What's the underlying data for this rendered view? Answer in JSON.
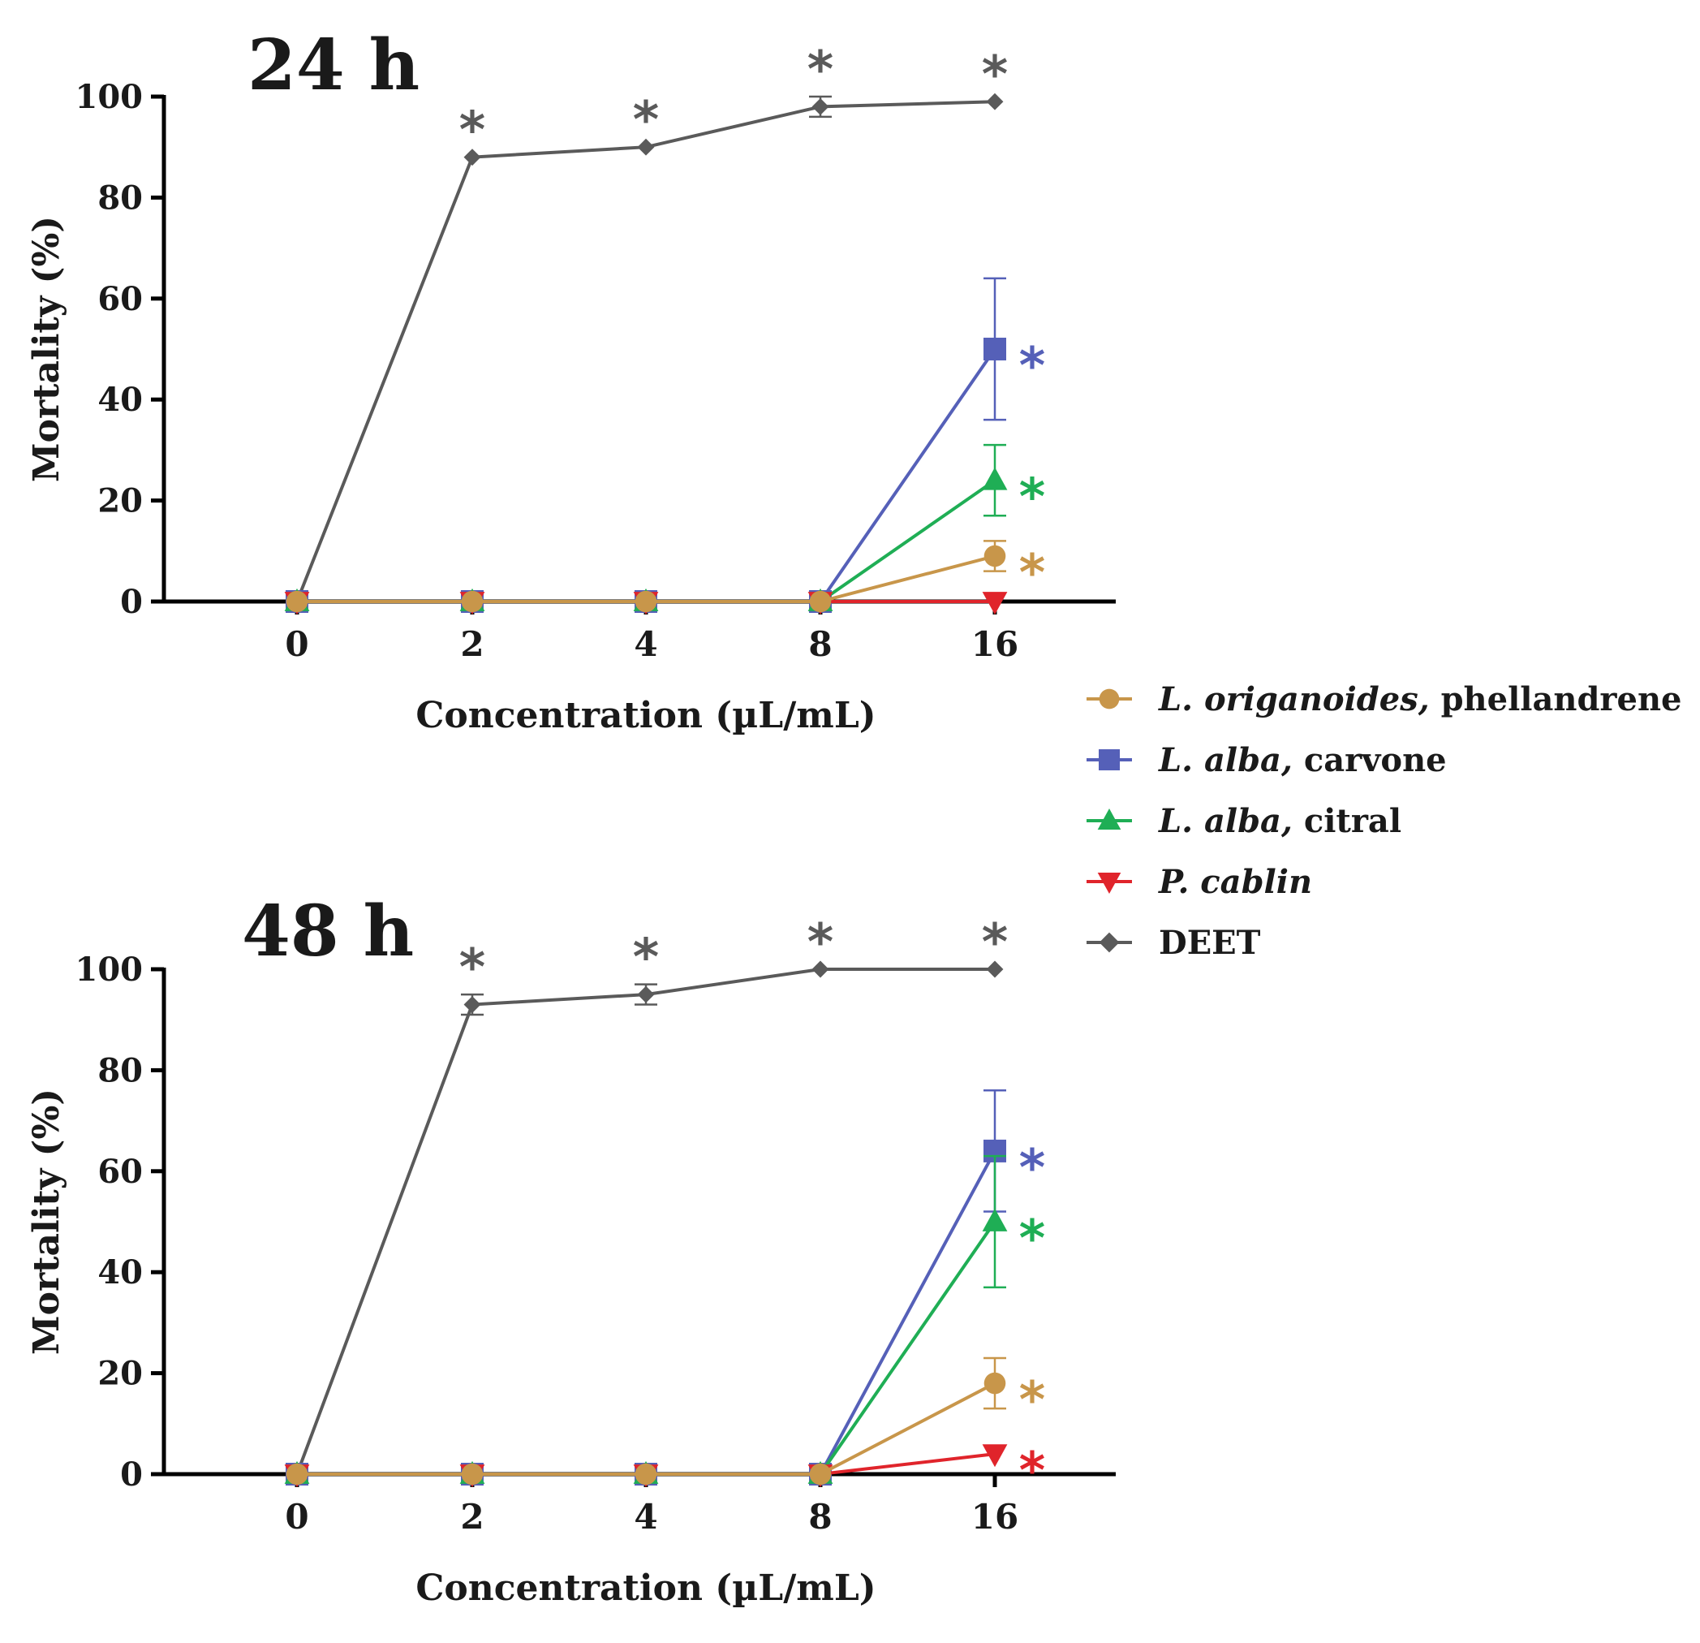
{
  "chart_data": [
    {
      "type": "line",
      "title": "24 h",
      "xlabel": "Concentration (µL/mL)",
      "ylabel": "Mortality (%)",
      "categories": [
        "0",
        "2",
        "4",
        "8",
        "16"
      ],
      "yticks": [
        "0",
        "20",
        "40",
        "60",
        "80",
        "100"
      ],
      "ylim": [
        0,
        100
      ],
      "series": [
        {
          "name": "DEET",
          "values": [
            0,
            88,
            90,
            98,
            99
          ],
          "errors": [
            0,
            0,
            0,
            2,
            0
          ],
          "stars": [
            false,
            true,
            true,
            true,
            true
          ]
        },
        {
          "name": "L. alba, carvone",
          "values": [
            0,
            0,
            0,
            0,
            50
          ],
          "errors": [
            0,
            0,
            0,
            0,
            14
          ],
          "stars": [
            false,
            false,
            false,
            false,
            true
          ]
        },
        {
          "name": "L. alba, citral",
          "values": [
            0,
            0,
            0,
            0,
            24
          ],
          "errors": [
            0,
            0,
            0,
            0,
            7
          ],
          "stars": [
            false,
            false,
            false,
            false,
            true
          ]
        },
        {
          "name": "P. cablin",
          "values": [
            0,
            0,
            0,
            0,
            0
          ],
          "errors": [
            0,
            0,
            0,
            0,
            0
          ],
          "stars": [
            false,
            false,
            false,
            false,
            false
          ]
        },
        {
          "name": "L. origanoides, phellandrene",
          "values": [
            0,
            0,
            0,
            0,
            9
          ],
          "errors": [
            0,
            0,
            0,
            0,
            3
          ],
          "stars": [
            false,
            false,
            false,
            false,
            true
          ]
        }
      ]
    },
    {
      "type": "line",
      "title": "48 h",
      "xlabel": "Concentration (µL/mL)",
      "ylabel": "Mortality (%)",
      "categories": [
        "0",
        "2",
        "4",
        "8",
        "16"
      ],
      "yticks": [
        "0",
        "20",
        "40",
        "60",
        "80",
        "100"
      ],
      "ylim": [
        0,
        100
      ],
      "series": [
        {
          "name": "DEET",
          "values": [
            0,
            93,
            95,
            100,
            100
          ],
          "errors": [
            0,
            2,
            2,
            0,
            0
          ],
          "stars": [
            false,
            true,
            true,
            true,
            true
          ]
        },
        {
          "name": "L. alba, carvone",
          "values": [
            0,
            0,
            0,
            0,
            64
          ],
          "errors": [
            0,
            0,
            0,
            0,
            12
          ],
          "stars": [
            false,
            false,
            false,
            false,
            true
          ]
        },
        {
          "name": "L. alba, citral",
          "values": [
            0,
            0,
            0,
            0,
            50
          ],
          "errors": [
            0,
            0,
            0,
            0,
            13
          ],
          "stars": [
            false,
            false,
            false,
            false,
            true
          ]
        },
        {
          "name": "P. cablin",
          "values": [
            0,
            0,
            0,
            0,
            4
          ],
          "errors": [
            0,
            0,
            0,
            0,
            0
          ],
          "stars": [
            false,
            false,
            false,
            false,
            true
          ]
        },
        {
          "name": "L. origanoides, phellandrene",
          "values": [
            0,
            0,
            0,
            0,
            18
          ],
          "errors": [
            0,
            0,
            0,
            0,
            5
          ],
          "stars": [
            false,
            false,
            false,
            false,
            true
          ]
        }
      ]
    }
  ],
  "legend": {
    "placement": "right",
    "items": [
      {
        "key": "phellandrene",
        "italic": "L. origanoides,",
        "rest": " phellandrene",
        "color": "#c8964a",
        "marker": "circle"
      },
      {
        "key": "carvone",
        "italic": "L. alba,",
        "rest": " carvone",
        "color": "#5560b8",
        "marker": "square"
      },
      {
        "key": "citral",
        "italic": "L. alba,",
        "rest": " citral",
        "color": "#1fae55",
        "marker": "triangle-up"
      },
      {
        "key": "cablin",
        "italic": "P. cablin",
        "rest": "",
        "color": "#e0242b",
        "marker": "triangle-down"
      },
      {
        "key": "deet",
        "italic": "",
        "rest": "DEET",
        "color": "#5a5a5a",
        "marker": "diamond"
      }
    ]
  },
  "series_colors": {
    "DEET": "#5a5a5a",
    "L. alba, carvone": "#5560b8",
    "L. alba, citral": "#1fae55",
    "P. cablin": "#e0242b",
    "L. origanoides, phellandrene": "#c8964a"
  },
  "series_markers": {
    "DEET": "diamond",
    "L. alba, carvone": "square",
    "L. alba, citral": "triangle-up",
    "P. cablin": "triangle-down",
    "L. origanoides, phellandrene": "circle"
  },
  "star_symbol": "*"
}
